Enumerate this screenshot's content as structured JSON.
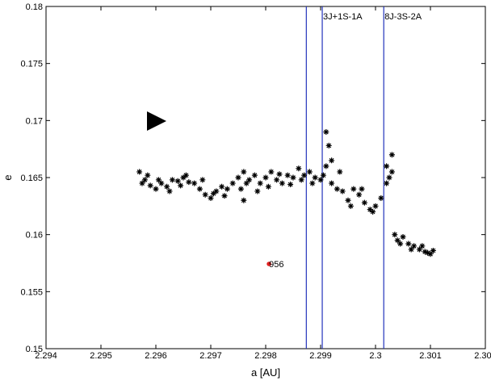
{
  "chart_data": {
    "type": "scatter",
    "xlabel": "a [AU]",
    "ylabel": "e",
    "xlim": [
      2.294,
      2.302
    ],
    "ylim": [
      0.15,
      0.18
    ],
    "xticks": [
      2.294,
      2.295,
      2.296,
      2.297,
      2.298,
      2.299,
      2.3,
      2.301,
      2.302
    ],
    "yticks": [
      0.15,
      0.155,
      0.16,
      0.165,
      0.17,
      0.175,
      0.18
    ],
    "points": {
      "color": "#000000",
      "x": [
        2.2957,
        2.2958,
        2.2959,
        2.296,
        2.2961,
        2.2962,
        2.2963,
        2.2964,
        2.2965,
        2.2966,
        2.2967,
        2.2968,
        2.2969,
        2.297,
        2.2971,
        2.2972,
        2.2973,
        2.2974,
        2.2975,
        2.2976,
        2.2976,
        2.2977,
        2.2978,
        2.2979,
        2.298,
        2.2981,
        2.2982,
        2.2983,
        2.2984,
        2.2985,
        2.2986,
        2.2987,
        2.2988,
        2.2989,
        2.299,
        2.2991,
        2.2991,
        2.2992,
        2.2992,
        2.2993,
        2.2994,
        2.2995,
        2.2996,
        2.2997,
        2.2998,
        2.2999,
        2.3,
        2.3001,
        2.3002,
        2.3002,
        2.3003,
        2.3003,
        2.3004,
        2.3005,
        2.3006,
        2.3007,
        2.3008,
        2.3009,
        2.301,
        2.29575,
        2.29585,
        2.29605,
        2.29625,
        2.29645,
        2.29655,
        2.29685,
        2.29705,
        2.29725,
        2.29755,
        2.29765,
        2.29785,
        2.29805,
        2.29825,
        2.29845,
        2.29865,
        2.29885,
        2.29905,
        2.29915,
        2.29935,
        2.29955,
        2.29975,
        2.29995,
        2.30025,
        2.30035,
        2.30045,
        2.30065,
        2.30085,
        2.30095,
        2.30105
      ],
      "y": [
        0.1655,
        0.1648,
        0.1643,
        0.164,
        0.1645,
        0.1642,
        0.1648,
        0.1647,
        0.165,
        0.1646,
        0.1645,
        0.164,
        0.1635,
        0.1632,
        0.1638,
        0.1642,
        0.164,
        0.1645,
        0.165,
        0.1655,
        0.163,
        0.1648,
        0.1652,
        0.1645,
        0.165,
        0.1655,
        0.1648,
        0.1645,
        0.1652,
        0.165,
        0.1658,
        0.1652,
        0.1655,
        0.165,
        0.1648,
        0.166,
        0.169,
        0.1665,
        0.1645,
        0.164,
        0.1638,
        0.163,
        0.164,
        0.1635,
        0.1628,
        0.1622,
        0.1625,
        0.1632,
        0.1645,
        0.166,
        0.167,
        0.1655,
        0.1595,
        0.1598,
        0.1592,
        0.159,
        0.1587,
        0.1585,
        0.1583,
        0.1645,
        0.1652,
        0.1648,
        0.1638,
        0.1643,
        0.1652,
        0.1648,
        0.1636,
        0.1634,
        0.164,
        0.1645,
        0.1638,
        0.1642,
        0.1653,
        0.1644,
        0.1648,
        0.1645,
        0.1652,
        0.1678,
        0.1655,
        0.1625,
        0.164,
        0.162,
        0.165,
        0.16,
        0.1592,
        0.1587,
        0.159,
        0.1584,
        0.1586
      ]
    },
    "highlight": {
      "x": 2.29806,
      "y": 0.15743,
      "label": "956",
      "color": "#e02020"
    },
    "vlines": [
      {
        "x": 2.29874,
        "color": "#2233bb"
      },
      {
        "x": 2.29903,
        "color": "#2233bb",
        "label": "3J+1S-1A"
      },
      {
        "x": 2.30015,
        "color": "#2233bb",
        "label": "8J-3S-2A"
      }
    ]
  }
}
